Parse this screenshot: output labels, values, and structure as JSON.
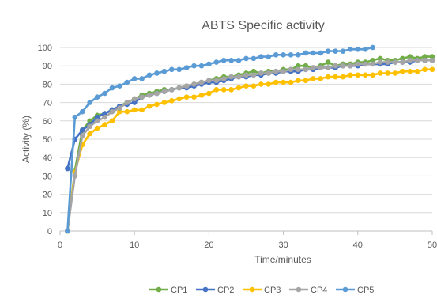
{
  "chart_data": {
    "type": "line",
    "title": "ABTS Specific activity",
    "xlabel": "Time/minutes",
    "ylabel": "Activity (%)",
    "xlim": [
      0,
      50
    ],
    "ylim": [
      0,
      100
    ],
    "xticks": [
      0,
      10,
      20,
      30,
      40,
      50
    ],
    "yticks": [
      0,
      10,
      20,
      30,
      40,
      50,
      60,
      70,
      80,
      90,
      100
    ],
    "grid": true,
    "legend_position": "bottom",
    "series": [
      {
        "name": "CP1",
        "color": "#70AD47",
        "x": [
          1,
          2,
          3,
          4,
          5,
          6,
          7,
          8,
          9,
          10,
          11,
          12,
          13,
          14,
          15,
          16,
          17,
          18,
          19,
          20,
          21,
          22,
          23,
          24,
          25,
          26,
          27,
          28,
          29,
          30,
          31,
          32,
          33,
          34,
          35,
          36,
          37,
          38,
          39,
          40,
          41,
          42,
          43,
          44,
          45,
          46,
          47,
          48,
          49,
          50
        ],
        "y": [
          0,
          33,
          55,
          60,
          63,
          64,
          66,
          68,
          70,
          72,
          74,
          75,
          76,
          77,
          77,
          78,
          79,
          80,
          81,
          82,
          83,
          84,
          84,
          85,
          86,
          87,
          86,
          87,
          87,
          88,
          88,
          90,
          90,
          89,
          90,
          92,
          90,
          91,
          91,
          92,
          92,
          93,
          94,
          93,
          93,
          94,
          95,
          94,
          95,
          95
        ]
      },
      {
        "name": "CP2",
        "color": "#4472C4",
        "x": [
          1,
          2,
          3,
          4,
          5,
          6,
          7,
          8,
          9,
          10,
          11,
          12,
          13,
          14,
          15,
          16,
          17,
          18,
          19,
          20,
          21,
          22,
          23,
          24,
          25,
          26,
          27,
          28,
          29,
          30,
          31,
          32,
          33,
          34,
          35,
          36,
          37,
          38,
          39,
          40,
          41,
          42,
          43,
          44,
          45,
          46,
          47,
          48,
          49,
          50
        ],
        "y": [
          34,
          50,
          55,
          58,
          62,
          64,
          66,
          68,
          69,
          70,
          73,
          74,
          75,
          76,
          77,
          78,
          78,
          79,
          80,
          81,
          81,
          82,
          83,
          84,
          84,
          85,
          85,
          86,
          86,
          87,
          87,
          87,
          88,
          88,
          89,
          89,
          89,
          90,
          90,
          90,
          91,
          91,
          91,
          91,
          92,
          92,
          92,
          93,
          93,
          93
        ]
      },
      {
        "name": "CP3",
        "color": "#FFC000",
        "x": [
          1,
          2,
          3,
          4,
          5,
          6,
          7,
          8,
          9,
          10,
          11,
          12,
          13,
          14,
          15,
          16,
          17,
          18,
          19,
          20,
          21,
          22,
          23,
          24,
          25,
          26,
          27,
          28,
          29,
          30,
          31,
          32,
          33,
          34,
          35,
          36,
          37,
          38,
          39,
          40,
          41,
          42,
          43,
          44,
          45,
          46,
          47,
          48,
          49,
          50
        ],
        "y": [
          0,
          32,
          47,
          53,
          56,
          58,
          60,
          65,
          65,
          66,
          66,
          68,
          69,
          70,
          71,
          72,
          73,
          73,
          74,
          75,
          77,
          77,
          77,
          78,
          79,
          79,
          80,
          80,
          81,
          81,
          81,
          82,
          82,
          83,
          83,
          84,
          84,
          84,
          85,
          85,
          85,
          85,
          86,
          86,
          86,
          87,
          87,
          87,
          88,
          88
        ]
      },
      {
        "name": "CP4",
        "color": "#A5A5A5",
        "x": [
          1,
          2,
          3,
          4,
          5,
          6,
          7,
          8,
          9,
          10,
          11,
          12,
          13,
          14,
          15,
          16,
          17,
          18,
          19,
          20,
          21,
          22,
          23,
          24,
          25,
          26,
          27,
          28,
          29,
          30,
          31,
          32,
          33,
          34,
          35,
          36,
          37,
          38,
          39,
          40,
          41,
          42,
          43,
          44,
          45,
          46,
          47,
          48,
          49,
          50
        ],
        "y": [
          0,
          30,
          52,
          57,
          60,
          62,
          65,
          67,
          70,
          72,
          73,
          74,
          75,
          76,
          77,
          78,
          79,
          80,
          81,
          82,
          82,
          83,
          84,
          84,
          85,
          85,
          86,
          86,
          87,
          87,
          88,
          88,
          88,
          89,
          89,
          89,
          90,
          90,
          90,
          91,
          91,
          91,
          92,
          92,
          92,
          92,
          93,
          93,
          93,
          93
        ]
      },
      {
        "name": "CP5",
        "color": "#5B9BD5",
        "x": [
          1,
          2,
          3,
          4,
          5,
          6,
          7,
          8,
          9,
          10,
          11,
          12,
          13,
          14,
          15,
          16,
          17,
          18,
          19,
          20,
          21,
          22,
          23,
          24,
          25,
          26,
          27,
          28,
          29,
          30,
          31,
          32,
          33,
          34,
          35,
          36,
          37,
          38,
          39,
          40,
          41,
          42
        ],
        "y": [
          0,
          62,
          65,
          70,
          73,
          75,
          78,
          79,
          81,
          83,
          83,
          85,
          86,
          87,
          88,
          88,
          89,
          90,
          90,
          91,
          92,
          93,
          93,
          93,
          94,
          94,
          95,
          95,
          96,
          96,
          96,
          96,
          97,
          97,
          97,
          98,
          98,
          98,
          99,
          99,
          99,
          100
        ]
      }
    ]
  }
}
